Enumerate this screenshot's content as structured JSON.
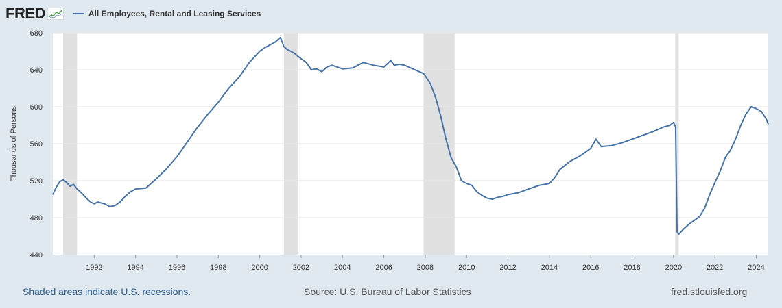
{
  "header": {
    "logo_text": "FRED",
    "logo_icon": "fred-sparkline-icon",
    "series_label": "All Employees, Rental and Leasing Services"
  },
  "footer": {
    "recessions_note": "Shaded areas indicate U.S. recessions.",
    "source": "Source: U.S. Bureau of Labor Statistics",
    "site": "fred.stlouisfed.org"
  },
  "colors": {
    "page_bg": "#e1e9f0",
    "plot_bg": "#ffffff",
    "line": "#4572a7",
    "recession": "#e1e1e1",
    "grid": "#e6e6e6"
  },
  "chart_data": {
    "type": "line",
    "ylabel": "Thousands of Persons",
    "xlabel": "",
    "ylim": [
      440,
      680
    ],
    "xlim": [
      1990.0,
      2024.58
    ],
    "y_ticks": [
      440,
      480,
      520,
      560,
      600,
      640,
      680
    ],
    "x_ticks": [
      1992,
      1994,
      1996,
      1998,
      2000,
      2002,
      2004,
      2006,
      2008,
      2010,
      2012,
      2014,
      2016,
      2018,
      2020,
      2022,
      2024
    ],
    "grid": "horizontal",
    "recessions": [
      [
        1990.5,
        1991.17
      ],
      [
        2001.17,
        2001.83
      ],
      [
        2007.92,
        2009.42
      ],
      [
        2020.08,
        2020.25
      ]
    ],
    "series": [
      {
        "name": "All Employees, Rental and Leasing Services",
        "x": [
          1990.0,
          1990.17,
          1990.33,
          1990.5,
          1990.67,
          1990.83,
          1991.0,
          1991.17,
          1991.33,
          1991.5,
          1991.67,
          1991.83,
          1992.0,
          1992.17,
          1992.5,
          1992.75,
          1993.0,
          1993.25,
          1993.5,
          1993.75,
          1994.0,
          1994.5,
          1995.0,
          1995.5,
          1996.0,
          1996.5,
          1997.0,
          1997.5,
          1998.0,
          1998.5,
          1999.0,
          1999.5,
          2000.0,
          2000.25,
          2000.5,
          2000.75,
          2001.0,
          2001.17,
          2001.33,
          2001.5,
          2001.67,
          2001.83,
          2002.0,
          2002.25,
          2002.5,
          2002.75,
          2003.0,
          2003.25,
          2003.5,
          2003.75,
          2004.0,
          2004.5,
          2005.0,
          2005.5,
          2006.0,
          2006.33,
          2006.5,
          2006.75,
          2007.0,
          2007.5,
          2007.92,
          2008.25,
          2008.5,
          2008.75,
          2009.0,
          2009.25,
          2009.5,
          2009.75,
          2010.0,
          2010.25,
          2010.5,
          2010.75,
          2011.0,
          2011.25,
          2011.5,
          2011.75,
          2012.0,
          2012.5,
          2013.0,
          2013.5,
          2014.0,
          2014.25,
          2014.5,
          2015.0,
          2015.5,
          2016.0,
          2016.25,
          2016.5,
          2017.0,
          2017.5,
          2018.0,
          2018.5,
          2019.0,
          2019.5,
          2019.83,
          2020.0,
          2020.1,
          2020.17,
          2020.25,
          2020.5,
          2020.75,
          2021.0,
          2021.25,
          2021.5,
          2021.75,
          2022.0,
          2022.25,
          2022.5,
          2022.75,
          2023.0,
          2023.25,
          2023.5,
          2023.75,
          2024.0,
          2024.25,
          2024.5,
          2024.58
        ],
        "values": [
          505,
          513,
          519,
          521,
          518,
          514,
          516,
          511,
          508,
          504,
          500,
          497,
          495,
          497,
          495,
          492,
          493,
          497,
          503,
          508,
          511,
          512,
          522,
          533,
          546,
          562,
          578,
          592,
          605,
          620,
          632,
          648,
          660,
          664,
          667,
          670,
          675,
          665,
          662,
          660,
          658,
          655,
          652,
          648,
          640,
          641,
          638,
          643,
          645,
          643,
          641,
          642,
          648,
          645,
          643,
          650,
          645,
          646,
          645,
          640,
          636,
          625,
          610,
          590,
          565,
          545,
          535,
          520,
          517,
          515,
          508,
          504,
          501,
          500,
          502,
          503,
          505,
          507,
          511,
          515,
          517,
          523,
          532,
          541,
          547,
          555,
          565,
          557,
          558,
          561,
          565,
          569,
          573,
          578,
          580,
          583,
          578,
          465,
          462,
          468,
          473,
          477,
          481,
          490,
          505,
          518,
          530,
          545,
          553,
          565,
          580,
          592,
          600,
          598,
          595,
          586,
          581
        ]
      }
    ]
  }
}
